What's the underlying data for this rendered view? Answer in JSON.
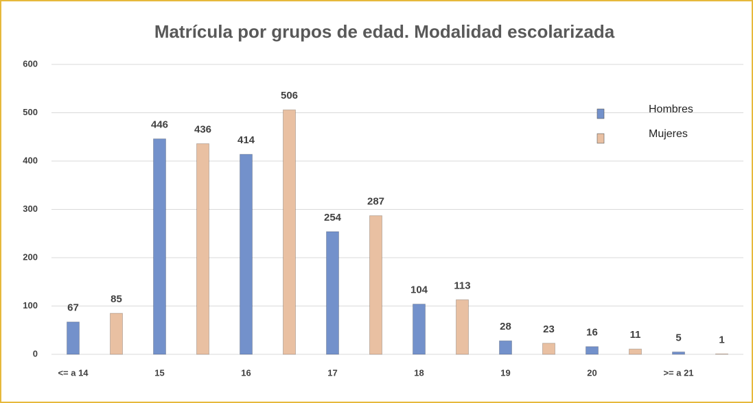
{
  "chart_data": {
    "type": "bar",
    "title": "Matrícula por grupos de edad. Modalidad escolarizada",
    "categories": [
      "<= a 14",
      "15",
      "16",
      "17",
      "18",
      "19",
      "20",
      ">= a 21"
    ],
    "series": [
      {
        "name": "Hombres",
        "color": "#7391cb",
        "values": [
          67,
          446,
          414,
          254,
          104,
          28,
          16,
          5
        ]
      },
      {
        "name": "Mujeres",
        "color": "#e9c0a2",
        "values": [
          85,
          436,
          506,
          287,
          113,
          23,
          11,
          1
        ]
      }
    ],
    "ylim": [
      0,
      600
    ],
    "yticks": [
      0,
      100,
      200,
      300,
      400,
      500,
      600
    ],
    "grid": true,
    "legend": "upper right"
  }
}
